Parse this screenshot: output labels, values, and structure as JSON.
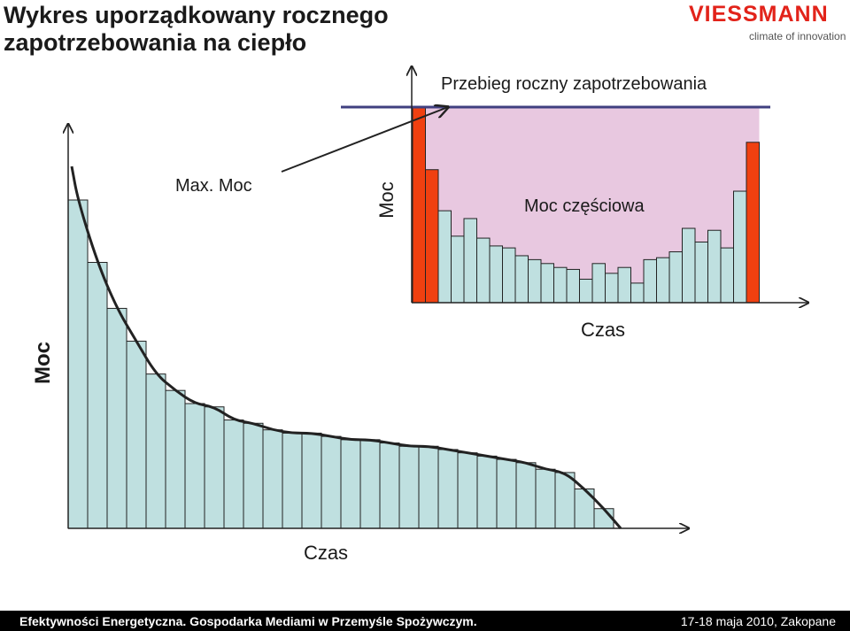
{
  "slide": {
    "title_line1": "Wykres uporządkowany  rocznego",
    "title_line2": "zapotrzebowania na ciepło"
  },
  "logo": {
    "wordmark": "VIESSMANN",
    "tagline": "climate of innovation"
  },
  "annotations": {
    "max_power": "Max. Moc",
    "annual_profile": "Przebieg roczny zapotrzebowania",
    "partial_power": "Moc częściowa"
  },
  "footer": {
    "left": "Efektywności Energetyczna. Gospodarka Mediami w Przemyśle Spożywczym.",
    "right": "17-18 maja 2010, Zakopane"
  },
  "colors": {
    "bar_fill": "#bfe0e0",
    "peak_bar_fill": "#f04010",
    "partial_area_fill": "#e8c8e0",
    "max_line": "#404080",
    "axis": "#222222"
  },
  "chart_data": [
    {
      "type": "bar",
      "description_type": "load duration curve",
      "xlabel": "Czas",
      "ylabel": "Moc",
      "ylim": [
        0,
        100
      ],
      "values": [
        100,
        81,
        67,
        57,
        47,
        42,
        38,
        37,
        33,
        32,
        30,
        29,
        29,
        28,
        27,
        27,
        26,
        25,
        25,
        24,
        23,
        22,
        21,
        20,
        18,
        17,
        12,
        6
      ],
      "trend_line": true,
      "grid": false
    },
    {
      "type": "bar",
      "description_type": "annual demand profile",
      "xlabel": "Czas",
      "ylabel": "Moc",
      "ylim": [
        0,
        100
      ],
      "values": [
        100,
        68,
        47,
        34,
        43,
        33,
        29,
        28,
        24,
        22,
        20,
        18,
        17,
        12,
        20,
        15,
        18,
        10,
        22,
        23,
        26,
        38,
        31,
        37,
        28,
        57,
        82
      ],
      "highlight_indices": [
        0,
        1,
        26
      ],
      "max_line_value": 100,
      "grid": false
    }
  ]
}
